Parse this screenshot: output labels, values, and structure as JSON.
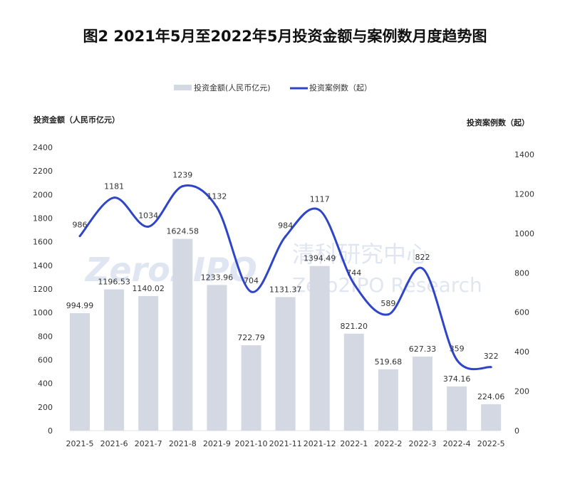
{
  "chart_data": {
    "type": "bar+line",
    "title": "图2   2021年5月至2022年5月投资金额与案例数月度趋势图",
    "categories": [
      "2021-5",
      "2021-6",
      "2021-7",
      "2021-8",
      "2021-9",
      "2021-10",
      "2021-11",
      "2021-12",
      "2022-1",
      "2022-2",
      "2022-3",
      "2022-4",
      "2022-5"
    ],
    "series": [
      {
        "name": "投资金额(人民币亿元)",
        "type": "bar",
        "axis": "left",
        "color": "#d3d8e3",
        "values": [
          994.99,
          1196.53,
          1140.02,
          1624.58,
          1233.96,
          722.79,
          1131.37,
          1394.49,
          821.2,
          519.68,
          627.33,
          374.16,
          224.06
        ],
        "labels": [
          "994.99",
          "1196.53",
          "1140.02",
          "1624.58",
          "1233.96",
          "722.79",
          "1131.37",
          "1394.49",
          "821.20",
          "519.68",
          "627.33",
          "374.16",
          "224.06"
        ]
      },
      {
        "name": "投资案例数（起）",
        "type": "line",
        "axis": "right",
        "color": "#2f45c9",
        "values": [
          986,
          1181,
          1034,
          1239,
          1132,
          704,
          984,
          1117,
          744,
          589,
          822,
          359,
          322
        ]
      }
    ],
    "ylabel_left": "投资金额（人民币亿元）",
    "ylabel_right": "投资案例数（起）",
    "ylim_left": [
      0,
      2400
    ],
    "ylim_right": [
      0,
      1400
    ],
    "yticks_left": [
      "0",
      "200",
      "400",
      "600",
      "800",
      "1000",
      "1200",
      "1400",
      "1600",
      "1800",
      "2000",
      "2200",
      "2400"
    ],
    "yticks_right": [
      "0",
      "200",
      "400",
      "600",
      "800",
      "1000",
      "1200",
      "1400"
    ],
    "legend_position": "top",
    "grid": false
  },
  "watermark": {
    "logo": "Zero2IPO",
    "cn": "清科研究中心",
    "en": "Zero2IPO Research"
  }
}
